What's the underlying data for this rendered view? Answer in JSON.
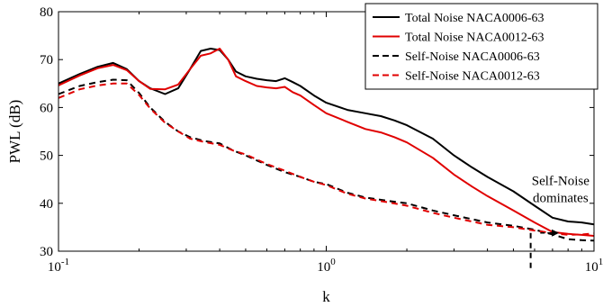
{
  "chart_data": {
    "type": "line",
    "xlabel": "k",
    "ylabel": "PWL (dB)",
    "x_scale": "log",
    "xlim": [
      0.1,
      10
    ],
    "ylim": [
      30,
      80
    ],
    "x_ticks": [
      {
        "value": 0.1,
        "base": "10",
        "exp": "-1"
      },
      {
        "value": 1,
        "base": "10",
        "exp": "0"
      },
      {
        "value": 10,
        "base": "10",
        "exp": "1"
      }
    ],
    "y_ticks": [
      30,
      40,
      50,
      60,
      70,
      80
    ],
    "grid": false,
    "legend_position": "top-right",
    "series": [
      {
        "name": "Total Noise NACA0006-63",
        "color": "#000000",
        "dash": "solid",
        "x": [
          0.1,
          0.12,
          0.14,
          0.16,
          0.18,
          0.2,
          0.22,
          0.25,
          0.28,
          0.31,
          0.34,
          0.37,
          0.4,
          0.43,
          0.46,
          0.5,
          0.55,
          0.6,
          0.65,
          0.7,
          0.75,
          0.8,
          0.9,
          1.0,
          1.2,
          1.4,
          1.6,
          1.8,
          2.0,
          2.5,
          3.0,
          3.5,
          4.0,
          5.0,
          6.0,
          7.0,
          8.0,
          9.0,
          10.0
        ],
        "y": [
          65,
          67,
          68.5,
          69.3,
          68,
          65.5,
          64,
          62.8,
          64,
          68,
          71.8,
          72.3,
          72,
          70,
          67.5,
          66.5,
          66,
          65.7,
          65.5,
          66.1,
          65.3,
          64.5,
          62.5,
          61,
          59.5,
          58.8,
          58.2,
          57.3,
          56.3,
          53.5,
          50,
          47.5,
          45.5,
          42.5,
          39.5,
          37,
          36.2,
          36,
          35.6
        ]
      },
      {
        "name": "Total Noise NACA0012-63",
        "color": "#e00000",
        "dash": "solid",
        "x": [
          0.1,
          0.12,
          0.14,
          0.16,
          0.18,
          0.2,
          0.22,
          0.25,
          0.28,
          0.31,
          0.34,
          0.37,
          0.4,
          0.43,
          0.46,
          0.5,
          0.55,
          0.6,
          0.65,
          0.7,
          0.75,
          0.8,
          0.9,
          1.0,
          1.2,
          1.4,
          1.6,
          1.8,
          2.0,
          2.5,
          3.0,
          3.5,
          4.0,
          5.0,
          6.0,
          7.0,
          8.0,
          9.0,
          10.0
        ],
        "y": [
          64.6,
          66.7,
          68.2,
          68.9,
          67.8,
          65.5,
          63.9,
          63.8,
          64.8,
          68,
          70.8,
          71.3,
          72.3,
          70,
          66.5,
          65.5,
          64.5,
          64.2,
          64,
          64.3,
          63.2,
          62.5,
          60.5,
          58.8,
          57,
          55.5,
          54.8,
          53.8,
          52.7,
          49.5,
          46,
          43.5,
          41.5,
          38.5,
          36,
          34,
          33.6,
          33.4,
          33.2
        ]
      },
      {
        "name": "Self-Noise NACA0006-63",
        "color": "#000000",
        "dash": "dashed",
        "x": [
          0.1,
          0.12,
          0.14,
          0.16,
          0.18,
          0.2,
          0.22,
          0.25,
          0.28,
          0.31,
          0.35,
          0.4,
          0.45,
          0.5,
          0.6,
          0.7,
          0.8,
          0.9,
          1.0,
          1.2,
          1.4,
          1.7,
          2.0,
          2.5,
          3.0,
          4.0,
          5.0,
          6.0,
          7.0,
          8.0,
          9.0,
          10.0
        ],
        "y": [
          62.8,
          64.5,
          65.3,
          65.8,
          65.7,
          63,
          60,
          57,
          55,
          53.8,
          53,
          52.5,
          51,
          50,
          48,
          46.5,
          45.5,
          44.5,
          44,
          42.2,
          41.2,
          40.5,
          40,
          38.5,
          37.5,
          36,
          35.3,
          34.5,
          33.5,
          32.5,
          32.3,
          32.2
        ]
      },
      {
        "name": "Self-Noise NACA0012-63",
        "color": "#e00000",
        "dash": "dashed",
        "x": [
          0.1,
          0.12,
          0.14,
          0.16,
          0.18,
          0.2,
          0.22,
          0.25,
          0.28,
          0.31,
          0.35,
          0.4,
          0.45,
          0.5,
          0.6,
          0.7,
          0.8,
          0.9,
          1.0,
          1.2,
          1.4,
          1.7,
          2.0,
          2.5,
          3.0,
          4.0,
          5.0,
          6.0,
          7.0,
          8.0,
          9.0,
          10.0
        ],
        "y": [
          62,
          63.8,
          64.6,
          65,
          65,
          62.6,
          59.8,
          56.8,
          55,
          53.5,
          52.8,
          52.2,
          51,
          50.2,
          48.2,
          46.8,
          45.5,
          44.5,
          43.8,
          42,
          41,
          40.2,
          39.5,
          38,
          37,
          35.5,
          35,
          34.3,
          33.8,
          33.4,
          33.5,
          33.7
        ]
      }
    ],
    "annotations": [
      {
        "text": "Self-Noise",
        "x": 7.5,
        "y": 43.8
      },
      {
        "text": "dominates",
        "x": 7.5,
        "y": 40.2
      }
    ],
    "marker_line": {
      "x": 5.8,
      "y_from": 33.8,
      "y_to": 26
    },
    "arrow": {
      "x_from": 6.3,
      "x_to": 7.4,
      "y": 33.8
    }
  }
}
